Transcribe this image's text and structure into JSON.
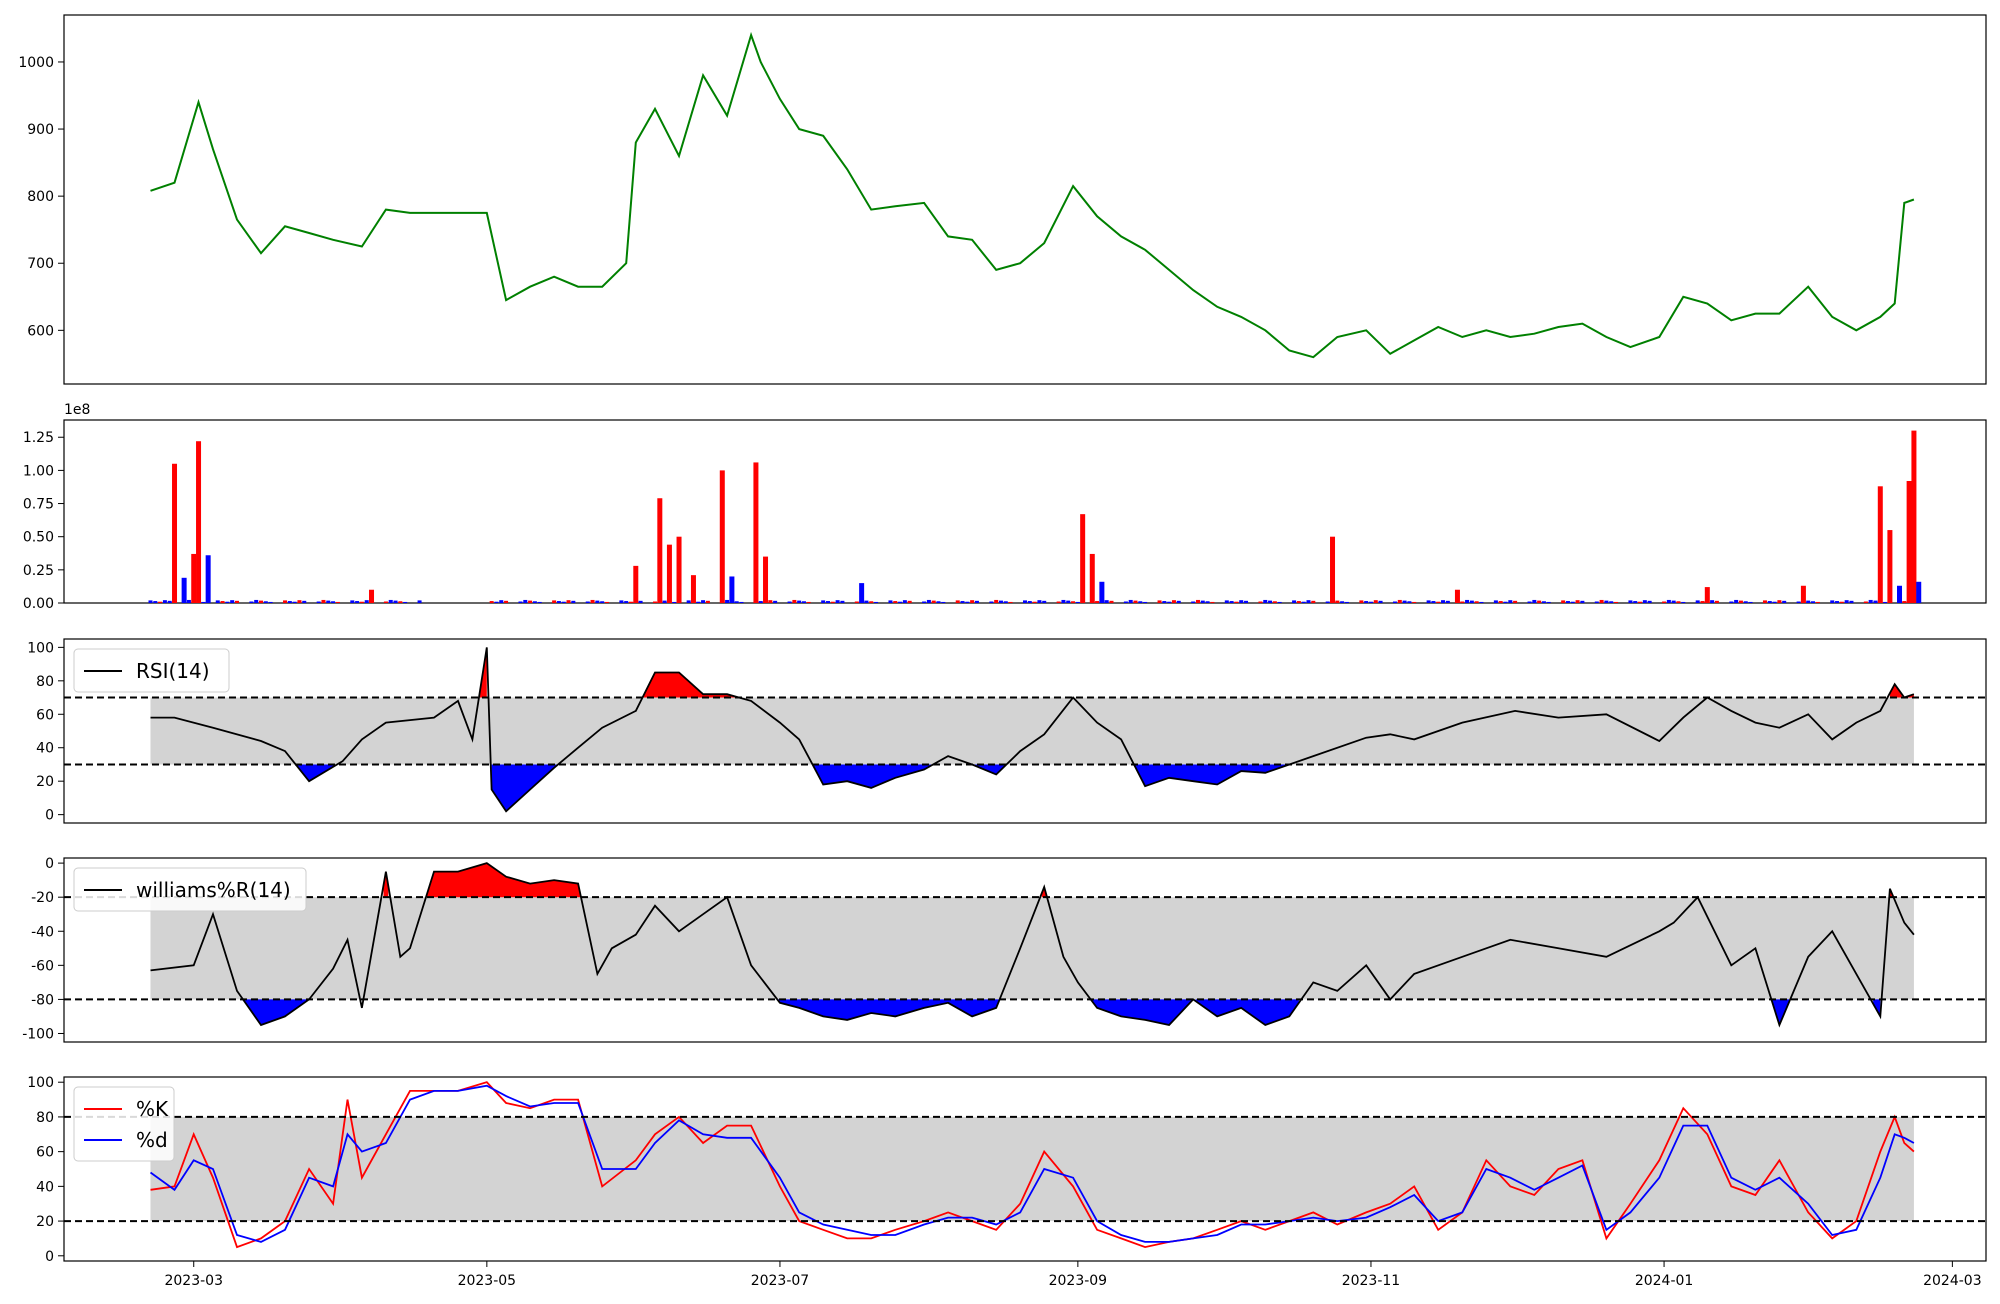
{
  "chart_data": [
    {
      "type": "line",
      "panel": "price",
      "color": "#008000",
      "ylim": [
        520,
        1070
      ],
      "yticks": [
        600,
        700,
        800,
        900,
        1000
      ],
      "x": [
        "2023-02-20",
        "2023-02-25",
        "2023-03-02",
        "2023-03-05",
        "2023-03-10",
        "2023-03-15",
        "2023-03-20",
        "2023-03-25",
        "2023-03-30",
        "2023-04-05",
        "2023-04-10",
        "2023-04-15",
        "2023-04-20",
        "2023-04-25",
        "2023-05-01",
        "2023-05-05",
        "2023-05-10",
        "2023-05-15",
        "2023-05-20",
        "2023-05-25",
        "2023-05-30",
        "2023-06-01",
        "2023-06-05",
        "2023-06-10",
        "2023-06-15",
        "2023-06-20",
        "2023-06-25",
        "2023-06-27",
        "2023-07-01",
        "2023-07-05",
        "2023-07-10",
        "2023-07-15",
        "2023-07-20",
        "2023-07-25",
        "2023-07-31",
        "2023-08-05",
        "2023-08-10",
        "2023-08-15",
        "2023-08-20",
        "2023-08-25",
        "2023-08-31",
        "2023-09-05",
        "2023-09-10",
        "2023-09-15",
        "2023-09-20",
        "2023-09-25",
        "2023-09-30",
        "2023-10-05",
        "2023-10-10",
        "2023-10-15",
        "2023-10-20",
        "2023-10-25",
        "2023-10-31",
        "2023-11-05",
        "2023-11-10",
        "2023-11-15",
        "2023-11-20",
        "2023-11-25",
        "2023-11-30",
        "2023-12-05",
        "2023-12-10",
        "2023-12-15",
        "2023-12-20",
        "2023-12-25",
        "2023-12-31",
        "2024-01-05",
        "2024-01-10",
        "2024-01-15",
        "2024-01-20",
        "2024-01-25",
        "2024-01-31",
        "2024-02-05",
        "2024-02-10",
        "2024-02-15",
        "2024-02-18",
        "2024-02-20",
        "2024-02-22"
      ],
      "values": [
        808,
        820,
        940,
        870,
        765,
        715,
        755,
        745,
        735,
        725,
        780,
        775,
        775,
        775,
        775,
        645,
        665,
        680,
        665,
        665,
        700,
        880,
        930,
        860,
        980,
        920,
        1040,
        1000,
        945,
        900,
        890,
        840,
        780,
        785,
        790,
        740,
        735,
        690,
        700,
        730,
        815,
        770,
        740,
        720,
        690,
        660,
        635,
        620,
        600,
        570,
        560,
        590,
        600,
        565,
        585,
        605,
        590,
        600,
        590,
        595,
        605,
        610,
        590,
        575,
        590,
        650,
        640,
        615,
        625,
        625,
        665,
        620,
        600,
        620,
        640,
        790,
        795
      ]
    },
    {
      "type": "bar",
      "panel": "volume",
      "multiplier_label": "1e8",
      "ylim": [
        0,
        1.38
      ],
      "yticks": [
        "0.00",
        "0.25",
        "0.50",
        "0.75",
        "1.00",
        "1.25"
      ],
      "up_color": "#ff0000",
      "down_color": "#0000ff",
      "baseline": 0.02,
      "spikes": [
        {
          "x": "2023-02-25",
          "value": 1.05,
          "color": "red"
        },
        {
          "x": "2023-02-27",
          "value": 0.19,
          "color": "blue"
        },
        {
          "x": "2023-03-01",
          "value": 0.37,
          "color": "red"
        },
        {
          "x": "2023-03-02",
          "value": 1.22,
          "color": "red"
        },
        {
          "x": "2023-03-04",
          "value": 0.36,
          "color": "blue"
        },
        {
          "x": "2023-04-07",
          "value": 0.1,
          "color": "red"
        },
        {
          "x": "2023-06-01",
          "value": 0.28,
          "color": "red"
        },
        {
          "x": "2023-06-06",
          "value": 0.79,
          "color": "red"
        },
        {
          "x": "2023-06-08",
          "value": 0.44,
          "color": "red"
        },
        {
          "x": "2023-06-10",
          "value": 0.5,
          "color": "red"
        },
        {
          "x": "2023-06-13",
          "value": 0.21,
          "color": "red"
        },
        {
          "x": "2023-06-19",
          "value": 1.0,
          "color": "red"
        },
        {
          "x": "2023-06-21",
          "value": 0.2,
          "color": "blue"
        },
        {
          "x": "2023-06-26",
          "value": 1.06,
          "color": "red"
        },
        {
          "x": "2023-06-28",
          "value": 0.35,
          "color": "red"
        },
        {
          "x": "2023-07-18",
          "value": 0.15,
          "color": "blue"
        },
        {
          "x": "2023-09-02",
          "value": 0.67,
          "color": "red"
        },
        {
          "x": "2023-09-04",
          "value": 0.37,
          "color": "red"
        },
        {
          "x": "2023-09-06",
          "value": 0.16,
          "color": "blue"
        },
        {
          "x": "2023-10-24",
          "value": 0.5,
          "color": "red"
        },
        {
          "x": "2023-11-19",
          "value": 0.1,
          "color": "red"
        },
        {
          "x": "2024-01-10",
          "value": 0.12,
          "color": "red"
        },
        {
          "x": "2024-01-30",
          "value": 0.13,
          "color": "red"
        },
        {
          "x": "2024-02-15",
          "value": 0.88,
          "color": "red"
        },
        {
          "x": "2024-02-17",
          "value": 0.55,
          "color": "red"
        },
        {
          "x": "2024-02-19",
          "value": 0.13,
          "color": "blue"
        },
        {
          "x": "2024-02-21",
          "value": 0.92,
          "color": "red"
        },
        {
          "x": "2024-02-22",
          "value": 1.3,
          "color": "red"
        },
        {
          "x": "2024-02-23",
          "value": 0.16,
          "color": "blue"
        }
      ]
    },
    {
      "type": "line",
      "panel": "rsi",
      "ylim": [
        -5,
        105
      ],
      "yticks": [
        0,
        20,
        40,
        60,
        80,
        100
      ],
      "upper": 70,
      "lower": 30,
      "legend": [
        "RSI(14)"
      ],
      "x": [
        "2023-02-20",
        "2023-02-25",
        "2023-03-05",
        "2023-03-15",
        "2023-03-20",
        "2023-03-25",
        "2023-04-01",
        "2023-04-05",
        "2023-04-10",
        "2023-04-20",
        "2023-04-25",
        "2023-04-28",
        "2023-05-01",
        "2023-05-02",
        "2023-05-05",
        "2023-05-10",
        "2023-05-15",
        "2023-05-20",
        "2023-05-25",
        "2023-06-01",
        "2023-06-05",
        "2023-06-10",
        "2023-06-15",
        "2023-06-20",
        "2023-06-25",
        "2023-07-01",
        "2023-07-05",
        "2023-07-10",
        "2023-07-15",
        "2023-07-20",
        "2023-07-25",
        "2023-07-31",
        "2023-08-05",
        "2023-08-10",
        "2023-08-15",
        "2023-08-20",
        "2023-08-25",
        "2023-08-31",
        "2023-09-05",
        "2023-09-10",
        "2023-09-15",
        "2023-09-20",
        "2023-09-25",
        "2023-09-30",
        "2023-10-05",
        "2023-10-10",
        "2023-10-15",
        "2023-10-20",
        "2023-10-31",
        "2023-11-05",
        "2023-11-10",
        "2023-11-20",
        "2023-12-01",
        "2023-12-10",
        "2023-12-20",
        "2023-12-31",
        "2024-01-05",
        "2024-01-10",
        "2024-01-15",
        "2024-01-20",
        "2024-01-25",
        "2024-01-31",
        "2024-02-05",
        "2024-02-10",
        "2024-02-15",
        "2024-02-18",
        "2024-02-20",
        "2024-02-22"
      ],
      "values": [
        58,
        58,
        52,
        44,
        38,
        20,
        32,
        45,
        55,
        58,
        68,
        45,
        100,
        15,
        2,
        15,
        28,
        40,
        52,
        62,
        85,
        85,
        72,
        72,
        68,
        55,
        45,
        18,
        20,
        16,
        22,
        27,
        35,
        30,
        24,
        38,
        48,
        70,
        55,
        45,
        17,
        22,
        20,
        18,
        26,
        25,
        30,
        35,
        46,
        48,
        45,
        55,
        62,
        58,
        60,
        44,
        58,
        70,
        62,
        55,
        52,
        60,
        45,
        55,
        62,
        78,
        70,
        72
      ]
    },
    {
      "type": "line",
      "panel": "williams",
      "ylim": [
        -105,
        3
      ],
      "yticks": [
        0,
        -20,
        -40,
        -60,
        -80,
        -100
      ],
      "upper": -20,
      "lower": -80,
      "legend": [
        "williams%R(14)"
      ],
      "x": [
        "2023-02-20",
        "2023-03-01",
        "2023-03-05",
        "2023-03-10",
        "2023-03-15",
        "2023-03-20",
        "2023-03-25",
        "2023-03-30",
        "2023-04-02",
        "2023-04-05",
        "2023-04-10",
        "2023-04-13",
        "2023-04-15",
        "2023-04-20",
        "2023-04-25",
        "2023-05-01",
        "2023-05-05",
        "2023-05-10",
        "2023-05-15",
        "2023-05-20",
        "2023-05-24",
        "2023-05-27",
        "2023-06-01",
        "2023-06-05",
        "2023-06-10",
        "2023-06-15",
        "2023-06-20",
        "2023-06-25",
        "2023-07-01",
        "2023-07-05",
        "2023-07-10",
        "2023-07-15",
        "2023-07-20",
        "2023-07-25",
        "2023-07-31",
        "2023-08-05",
        "2023-08-10",
        "2023-08-15",
        "2023-08-20",
        "2023-08-25",
        "2023-08-29",
        "2023-09-01",
        "2023-09-05",
        "2023-09-10",
        "2023-09-15",
        "2023-09-20",
        "2023-09-25",
        "2023-09-30",
        "2023-10-05",
        "2023-10-10",
        "2023-10-15",
        "2023-10-20",
        "2023-10-25",
        "2023-10-31",
        "2023-11-05",
        "2023-11-10",
        "2023-11-20",
        "2023-11-30",
        "2023-12-10",
        "2023-12-20",
        "2023-12-31",
        "2024-01-03",
        "2024-01-08",
        "2024-01-15",
        "2024-01-20",
        "2024-01-25",
        "2024-01-31",
        "2024-02-05",
        "2024-02-10",
        "2024-02-15",
        "2024-02-17",
        "2024-02-20",
        "2024-02-22"
      ],
      "values": [
        -63,
        -60,
        -30,
        -75,
        -95,
        -90,
        -80,
        -62,
        -45,
        -85,
        -5,
        -55,
        -50,
        -5,
        -5,
        0,
        -8,
        -12,
        -10,
        -12,
        -65,
        -50,
        -42,
        -25,
        -40,
        -30,
        -20,
        -60,
        -82,
        -85,
        -90,
        -92,
        -88,
        -90,
        -85,
        -82,
        -90,
        -85,
        -50,
        -14,
        -55,
        -70,
        -85,
        -90,
        -92,
        -95,
        -80,
        -90,
        -85,
        -95,
        -90,
        -70,
        -75,
        -60,
        -80,
        -65,
        -55,
        -45,
        -50,
        -55,
        -40,
        -35,
        -20,
        -60,
        -50,
        -95,
        -55,
        -40,
        -65,
        -90,
        -15,
        -35,
        -42
      ]
    },
    {
      "type": "line",
      "panel": "stochastic",
      "ylim": [
        -3,
        103
      ],
      "yticks": [
        0,
        20,
        40,
        60,
        80,
        100
      ],
      "upper": 80,
      "lower": 20,
      "legend": [
        "%K",
        "%d"
      ],
      "x": [
        "2023-02-20",
        "2023-02-25",
        "2023-03-01",
        "2023-03-05",
        "2023-03-10",
        "2023-03-15",
        "2023-03-20",
        "2023-03-25",
        "2023-03-30",
        "2023-04-02",
        "2023-04-05",
        "2023-04-10",
        "2023-04-15",
        "2023-04-20",
        "2023-04-25",
        "2023-05-01",
        "2023-05-05",
        "2023-05-10",
        "2023-05-15",
        "2023-05-20",
        "2023-05-25",
        "2023-06-01",
        "2023-06-05",
        "2023-06-10",
        "2023-06-15",
        "2023-06-20",
        "2023-06-25",
        "2023-07-01",
        "2023-07-05",
        "2023-07-10",
        "2023-07-15",
        "2023-07-20",
        "2023-07-25",
        "2023-07-31",
        "2023-08-05",
        "2023-08-10",
        "2023-08-15",
        "2023-08-20",
        "2023-08-25",
        "2023-08-31",
        "2023-09-05",
        "2023-09-10",
        "2023-09-15",
        "2023-09-20",
        "2023-09-25",
        "2023-09-30",
        "2023-10-05",
        "2023-10-10",
        "2023-10-15",
        "2023-10-20",
        "2023-10-25",
        "2023-10-31",
        "2023-11-05",
        "2023-11-10",
        "2023-11-15",
        "2023-11-20",
        "2023-11-25",
        "2023-11-30",
        "2023-12-05",
        "2023-12-10",
        "2023-12-15",
        "2023-12-20",
        "2023-12-25",
        "2023-12-31",
        "2024-01-05",
        "2024-01-10",
        "2024-01-15",
        "2024-01-20",
        "2024-01-25",
        "2024-01-31",
        "2024-02-05",
        "2024-02-10",
        "2024-02-15",
        "2024-02-18",
        "2024-02-20",
        "2024-02-22"
      ],
      "series": [
        {
          "name": "%K",
          "color": "#ff0000",
          "values": [
            38,
            40,
            70,
            45,
            5,
            10,
            20,
            50,
            30,
            90,
            45,
            70,
            95,
            95,
            95,
            100,
            88,
            85,
            90,
            90,
            40,
            55,
            70,
            80,
            65,
            75,
            75,
            40,
            20,
            15,
            10,
            10,
            15,
            20,
            25,
            20,
            15,
            30,
            60,
            40,
            15,
            10,
            5,
            8,
            10,
            15,
            20,
            15,
            20,
            25,
            18,
            25,
            30,
            40,
            15,
            25,
            55,
            40,
            35,
            50,
            55,
            10,
            30,
            55,
            85,
            70,
            40,
            35,
            55,
            25,
            10,
            20,
            60,
            80,
            65,
            60
          ]
        },
        {
          "name": "%d",
          "color": "#0000ff",
          "values": [
            48,
            38,
            55,
            50,
            12,
            8,
            15,
            45,
            40,
            70,
            60,
            65,
            90,
            95,
            95,
            98,
            92,
            86,
            88,
            88,
            50,
            50,
            65,
            78,
            70,
            68,
            68,
            45,
            25,
            18,
            15,
            12,
            12,
            18,
            22,
            22,
            18,
            25,
            50,
            45,
            20,
            12,
            8,
            8,
            10,
            12,
            18,
            18,
            20,
            22,
            20,
            22,
            28,
            35,
            20,
            25,
            50,
            45,
            38,
            45,
            52,
            15,
            25,
            45,
            75,
            75,
            45,
            38,
            45,
            30,
            12,
            15,
            45,
            70,
            68,
            65
          ]
        }
      ]
    }
  ],
  "x_axis": {
    "tick_labels": [
      "2023-03",
      "2023-05",
      "2023-07",
      "2023-09",
      "2023-11",
      "2024-01",
      "2024-03"
    ],
    "range": [
      "2023-02-02",
      "2024-03-08"
    ]
  }
}
